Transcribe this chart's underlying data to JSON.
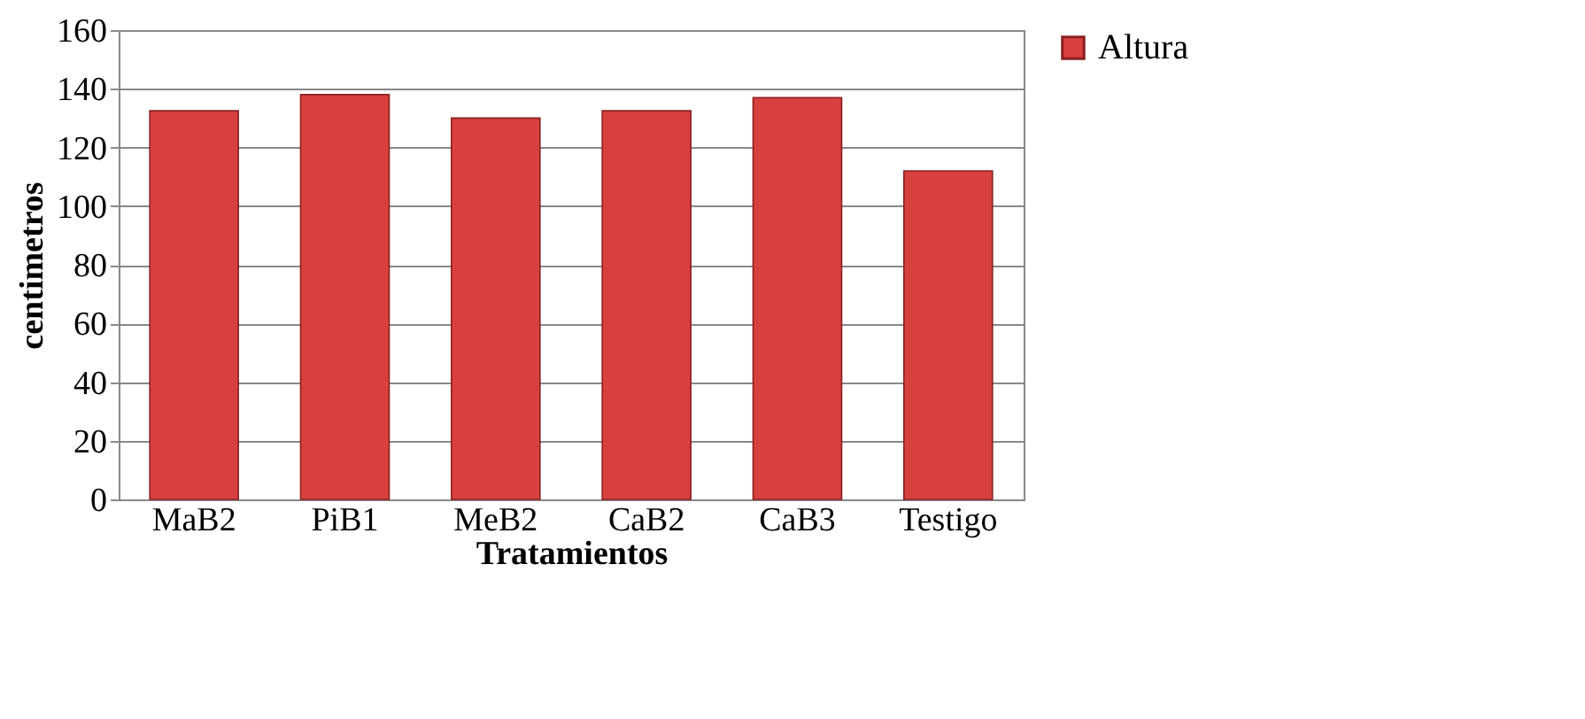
{
  "chart_data": {
    "type": "bar",
    "xlabel": "Tratamientos",
    "ylabel": "centimetros",
    "categories": [
      "MaB2",
      "PiB1",
      "MeB2",
      "CaB2",
      "CaB3",
      "Testigo"
    ],
    "series": [
      {
        "name": "Altura",
        "color": "#d84040",
        "values": [
          132.5,
          138,
          130,
          132.5,
          137,
          112
        ]
      }
    ],
    "ylim": [
      0,
      160
    ],
    "yticks": [
      0,
      20,
      40,
      60,
      80,
      100,
      120,
      140,
      160
    ],
    "grid": "y",
    "legend": "right"
  }
}
